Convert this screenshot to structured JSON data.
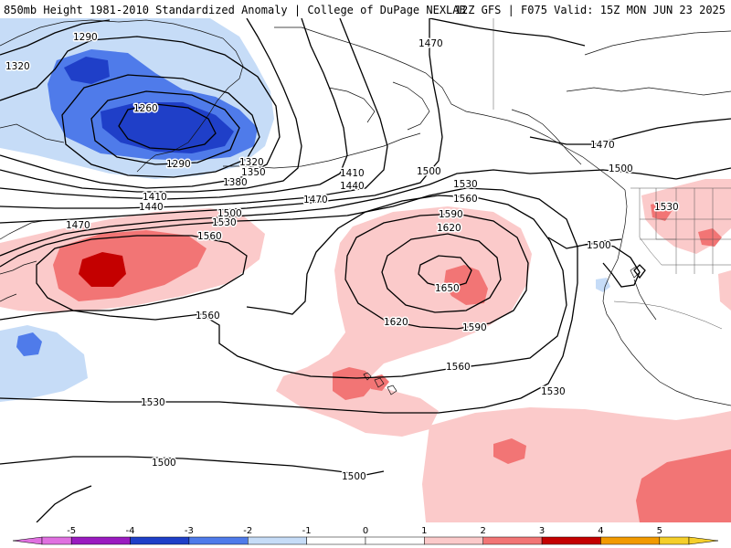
{
  "header": {
    "title_left": "850mb Height 1981-2010 Standardized Anomaly | College of DuPage NEXLAB",
    "title_right": "12Z GFS | F075 Valid: 15Z MON JUN 23 2025"
  },
  "colors": {
    "anom_neg5": "#e070e0",
    "anom_neg4": "#9a1bc0",
    "anom_neg3": "#1f3fc8",
    "anom_neg2": "#4f7bea",
    "anom_neg1": "#c6dcf7",
    "anom_pos1": "#fbcaca",
    "anom_pos2": "#f27575",
    "anom_pos3": "#c40000",
    "anom_pos4": "#f29a00",
    "anom_pos5": "#f5cf2a",
    "contour": "#000000",
    "coast": "#111111"
  },
  "contour_labels": [
    "1290",
    "1320",
    "1260",
    "1290",
    "1320",
    "1350",
    "1380",
    "1410",
    "1440",
    "1410",
    "1440",
    "1470",
    "1470",
    "1470",
    "1470",
    "1500",
    "1500",
    "1500",
    "1500",
    "1500",
    "1530",
    "1530",
    "1530",
    "1530",
    "1530",
    "1560",
    "1560",
    "1560",
    "1560",
    "1590",
    "1590",
    "1620",
    "1620",
    "1650",
    "1500",
    "1500"
  ],
  "colorbar": {
    "ticks": [
      "-5",
      "-4",
      "-3",
      "-2",
      "-1",
      "0",
      "1",
      "2",
      "3",
      "4",
      "5"
    ],
    "icons": {
      "left_arrow": "arrow-left-icon",
      "right_arrow": "arrow-right-icon"
    }
  }
}
